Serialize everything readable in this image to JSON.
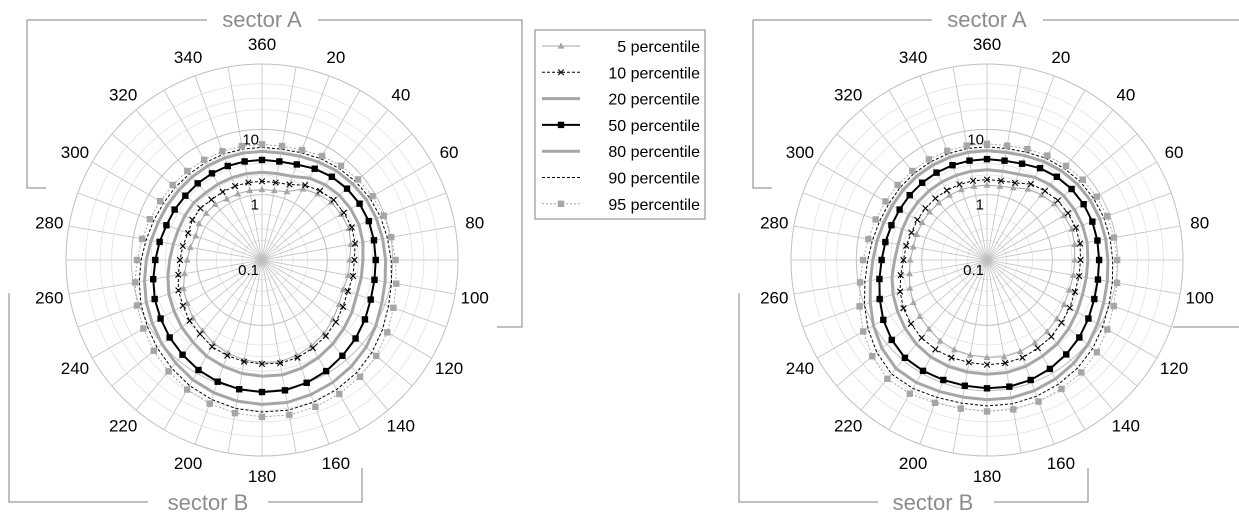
{
  "chart_data": [
    {
      "type": "radar",
      "title": "",
      "axis": {
        "angle_ticks": [
          360,
          20,
          40,
          60,
          80,
          100,
          120,
          140,
          160,
          180,
          200,
          220,
          240,
          260,
          280,
          300,
          320,
          340
        ],
        "angle_tick_labels": [
          "360",
          "20",
          "40",
          "60",
          "80",
          "100",
          "120",
          "140",
          "160",
          "180",
          "200",
          "220",
          "240",
          "260",
          "280",
          "300",
          "320",
          "340"
        ],
        "angle_step_deg": 10,
        "radial_scale": "log",
        "radial_range": [
          0.1,
          100
        ],
        "radial_tick_labels": [
          "0.1",
          "1",
          "10"
        ]
      },
      "sectors": [
        {
          "label": "sector A",
          "from_deg": 300,
          "to_deg": 100
        },
        {
          "label": "sector B",
          "from_deg": 140,
          "to_deg": 260
        }
      ],
      "angles_deg": [
        0,
        10,
        20,
        30,
        40,
        50,
        60,
        70,
        80,
        90,
        100,
        110,
        120,
        130,
        140,
        150,
        160,
        170,
        180,
        190,
        200,
        210,
        220,
        230,
        240,
        250,
        260,
        270,
        280,
        290,
        300,
        310,
        320,
        330,
        340,
        350
      ],
      "series": [
        {
          "name": "5 percentile",
          "values": [
            1.2,
            1.2,
            1.3,
            1.8,
            2.1,
            2.4,
            2.5,
            2.6,
            2.4,
            2.2,
            2.2,
            2.1,
            2.3,
            2.6,
            3.0,
            3.3,
            3.6,
            3.8,
            3.7,
            3.6,
            3.3,
            3.0,
            2.6,
            2.4,
            2.1,
            1.9,
            1.6,
            1.4,
            1.3,
            1.2,
            1.3,
            1.3,
            1.3,
            1.2,
            1.2,
            1.2
          ]
        },
        {
          "name": "10 percentile",
          "values": [
            1.6,
            1.6,
            1.7,
            2.1,
            2.4,
            2.7,
            2.8,
            2.9,
            2.8,
            2.6,
            2.6,
            2.5,
            2.7,
            3.0,
            3.3,
            3.6,
            3.9,
            4.0,
            3.9,
            3.8,
            3.6,
            3.4,
            3.0,
            2.8,
            2.5,
            2.3,
            2.0,
            1.8,
            1.7,
            1.6,
            1.7,
            1.7,
            1.6,
            1.6,
            1.6,
            1.6
          ]
        },
        {
          "name": "20 percentile",
          "values": [
            2.2,
            2.2,
            2.3,
            2.8,
            3.2,
            3.5,
            3.7,
            3.8,
            3.7,
            3.5,
            3.5,
            3.5,
            3.9,
            4.3,
            4.8,
            5.3,
            5.8,
            6.1,
            6.0,
            5.8,
            5.4,
            5.0,
            4.4,
            4.0,
            3.6,
            3.3,
            2.9,
            2.6,
            2.4,
            2.3,
            2.3,
            2.3,
            2.2,
            2.2,
            2.2,
            2.2
          ]
        },
        {
          "name": "50 percentile",
          "values": [
            3.4,
            3.4,
            3.6,
            4.1,
            4.6,
            5.0,
            5.3,
            5.5,
            5.5,
            5.5,
            5.6,
            5.9,
            6.6,
            7.4,
            8.2,
            9.2,
            10.0,
            10.6,
            10.5,
            10.2,
            9.6,
            8.8,
            7.8,
            7.0,
            6.2,
            5.6,
            4.9,
            4.3,
            3.9,
            3.6,
            3.5,
            3.4,
            3.4,
            3.4,
            3.4,
            3.4
          ]
        },
        {
          "name": "80 percentile",
          "values": [
            4.6,
            4.6,
            4.9,
            5.4,
            6.0,
            6.5,
            7.0,
            7.3,
            7.5,
            7.8,
            8.2,
            8.9,
            10.3,
            12.0,
            13.4,
            14.6,
            15.6,
            16.4,
            16.2,
            15.6,
            14.5,
            13.1,
            11.4,
            10.0,
            8.7,
            7.7,
            6.7,
            5.9,
            5.3,
            4.9,
            4.7,
            4.6,
            4.6,
            4.6,
            4.6,
            4.6
          ]
        },
        {
          "name": "90 percentile",
          "values": [
            5.3,
            5.3,
            5.6,
            6.2,
            6.8,
            7.4,
            8.0,
            8.5,
            8.9,
            9.5,
            10.3,
            11.5,
            13.5,
            15.8,
            17.9,
            19.4,
            20.6,
            21.5,
            21.2,
            20.3,
            18.6,
            16.6,
            14.3,
            12.4,
            10.7,
            9.4,
            8.1,
            7.1,
            6.3,
            5.8,
            5.5,
            5.4,
            5.3,
            5.3,
            5.3,
            5.3
          ]
        },
        {
          "name": "95 percentile",
          "values": [
            5.9,
            5.9,
            6.2,
            6.9,
            7.6,
            8.3,
            9.0,
            9.6,
            10.2,
            11.1,
            12.2,
            13.8,
            16.4,
            19.2,
            21.6,
            23.3,
            24.6,
            25.6,
            25.2,
            24.0,
            21.9,
            19.5,
            16.8,
            14.5,
            12.5,
            10.9,
            9.4,
            8.2,
            7.3,
            6.7,
            6.3,
            6.1,
            6.0,
            5.9,
            5.9,
            5.9
          ]
        }
      ]
    },
    {
      "type": "radar",
      "title": "",
      "axis": {
        "angle_ticks": [
          360,
          20,
          40,
          60,
          80,
          100,
          120,
          140,
          160,
          180,
          200,
          220,
          240,
          260,
          280,
          300,
          320,
          340
        ],
        "angle_tick_labels": [
          "360",
          "20",
          "40",
          "60",
          "80",
          "100",
          "120",
          "140",
          "160",
          "180",
          "200",
          "220",
          "240",
          "260",
          "280",
          "300",
          "320",
          "340"
        ],
        "angle_step_deg": 10,
        "radial_scale": "log",
        "radial_range": [
          0.1,
          100
        ],
        "radial_tick_labels": [
          "0.1",
          "1",
          "10"
        ]
      },
      "sectors": [
        {
          "label": "sector A",
          "from_deg": 300,
          "to_deg": 100
        },
        {
          "label": "sector B",
          "from_deg": 140,
          "to_deg": 260
        }
      ],
      "angles_deg": [
        0,
        10,
        20,
        30,
        40,
        50,
        60,
        70,
        80,
        90,
        100,
        110,
        120,
        130,
        140,
        150,
        160,
        170,
        180,
        190,
        200,
        210,
        220,
        230,
        240,
        250,
        260,
        270,
        280,
        290,
        300,
        310,
        320,
        330,
        340,
        350
      ],
      "series": [
        {
          "name": "5 percentile",
          "values": [
            1.4,
            1.4,
            1.5,
            1.8,
            2.0,
            2.2,
            2.3,
            2.4,
            2.3,
            2.2,
            2.2,
            2.2,
            2.3,
            2.5,
            2.7,
            2.9,
            3.1,
            3.2,
            3.1,
            3.0,
            2.9,
            2.7,
            2.4,
            2.2,
            2.0,
            1.8,
            1.6,
            1.5,
            1.4,
            1.4,
            1.4,
            1.4,
            1.4,
            1.4,
            1.4,
            1.4
          ]
        },
        {
          "name": "10 percentile",
          "values": [
            1.7,
            1.7,
            1.8,
            2.2,
            2.4,
            2.6,
            2.7,
            2.8,
            2.8,
            2.7,
            2.7,
            2.7,
            2.9,
            3.1,
            3.4,
            3.6,
            3.9,
            4.0,
            4.0,
            3.9,
            3.9,
            3.8,
            3.6,
            3.3,
            3.0,
            2.6,
            2.2,
            1.9,
            1.8,
            1.7,
            1.7,
            1.7,
            1.7,
            1.7,
            1.7,
            1.7
          ]
        },
        {
          "name": "20 percentile",
          "values": [
            2.4,
            2.4,
            2.5,
            2.9,
            3.2,
            3.4,
            3.5,
            3.6,
            3.6,
            3.5,
            3.5,
            3.6,
            3.9,
            4.3,
            4.7,
            5.0,
            5.4,
            5.6,
            5.6,
            5.5,
            5.4,
            5.2,
            4.8,
            4.3,
            3.8,
            3.4,
            3.0,
            2.6,
            2.4,
            2.4,
            2.4,
            2.4,
            2.4,
            2.4,
            2.4,
            2.4
          ]
        },
        {
          "name": "50 percentile",
          "values": [
            3.5,
            3.5,
            3.7,
            4.2,
            4.6,
            4.9,
            5.1,
            5.2,
            5.2,
            5.2,
            5.3,
            5.6,
            6.2,
            7.0,
            7.7,
            8.4,
            9.0,
            9.3,
            9.2,
            9.0,
            9.0,
            9.1,
            9.0,
            8.0,
            6.8,
            5.6,
            4.7,
            4.1,
            3.8,
            3.6,
            3.5,
            3.5,
            3.5,
            3.5,
            3.5,
            3.5
          ]
        },
        {
          "name": "80 percentile",
          "values": [
            4.7,
            4.7,
            5.0,
            5.5,
            6.0,
            6.4,
            6.7,
            6.9,
            7.0,
            7.1,
            7.4,
            8.0,
            9.0,
            10.4,
            11.6,
            12.6,
            13.4,
            13.9,
            13.8,
            13.5,
            13.8,
            14.6,
            14.7,
            12.6,
            10.2,
            8.0,
            6.5,
            5.6,
            5.1,
            4.8,
            4.7,
            4.7,
            4.7,
            4.7,
            4.7,
            4.7
          ]
        },
        {
          "name": "90 percentile",
          "values": [
            5.4,
            5.4,
            5.7,
            6.3,
            6.8,
            7.3,
            7.7,
            8.0,
            8.2,
            8.4,
            8.9,
            9.7,
            11.1,
            12.9,
            14.4,
            15.6,
            16.6,
            17.2,
            17.1,
            16.8,
            17.3,
            18.6,
            18.9,
            15.9,
            12.7,
            9.9,
            7.9,
            6.7,
            6.0,
            5.6,
            5.4,
            5.4,
            5.4,
            5.4,
            5.4,
            5.4
          ]
        },
        {
          "name": "95 percentile",
          "values": [
            6.0,
            6.0,
            6.4,
            7.0,
            7.6,
            8.2,
            8.7,
            9.1,
            9.4,
            9.8,
            10.5,
            11.6,
            13.4,
            15.7,
            17.6,
            19.0,
            20.2,
            21.0,
            20.8,
            20.4,
            21.2,
            23.1,
            23.6,
            19.6,
            15.4,
            11.9,
            9.4,
            7.9,
            7.0,
            6.5,
            6.2,
            6.1,
            6.0,
            6.0,
            6.0,
            6.0
          ]
        }
      ]
    }
  ],
  "legend": {
    "placement": "between charts, top",
    "entries": [
      "5 percentile",
      "10 percentile",
      "20 percentile",
      "50 percentile",
      "80 percentile",
      "90 percentile",
      "95 percentile"
    ]
  },
  "styles": {
    "grid_color": "#c0c0c0",
    "sector_line_color": "#808080",
    "sector_label_color": "#8c8c8c",
    "series": [
      {
        "name": "5 percentile",
        "color": "#a6a6a6",
        "width": 1,
        "dash": "",
        "marker": "triangle"
      },
      {
        "name": "10 percentile",
        "color": "#000000",
        "width": 1,
        "dash": "3,2",
        "marker": "x"
      },
      {
        "name": "20 percentile",
        "color": "#a6a6a6",
        "width": 3,
        "dash": "",
        "marker": "none"
      },
      {
        "name": "50 percentile",
        "color": "#000000",
        "width": 2,
        "dash": "",
        "marker": "square"
      },
      {
        "name": "80 percentile",
        "color": "#a6a6a6",
        "width": 3,
        "dash": "",
        "marker": "none"
      },
      {
        "name": "90 percentile",
        "color": "#000000",
        "width": 1,
        "dash": "3,2",
        "marker": "none"
      },
      {
        "name": "95 percentile",
        "color": "#a6a6a6",
        "width": 1,
        "dash": "2,2",
        "marker": "square"
      }
    ]
  }
}
